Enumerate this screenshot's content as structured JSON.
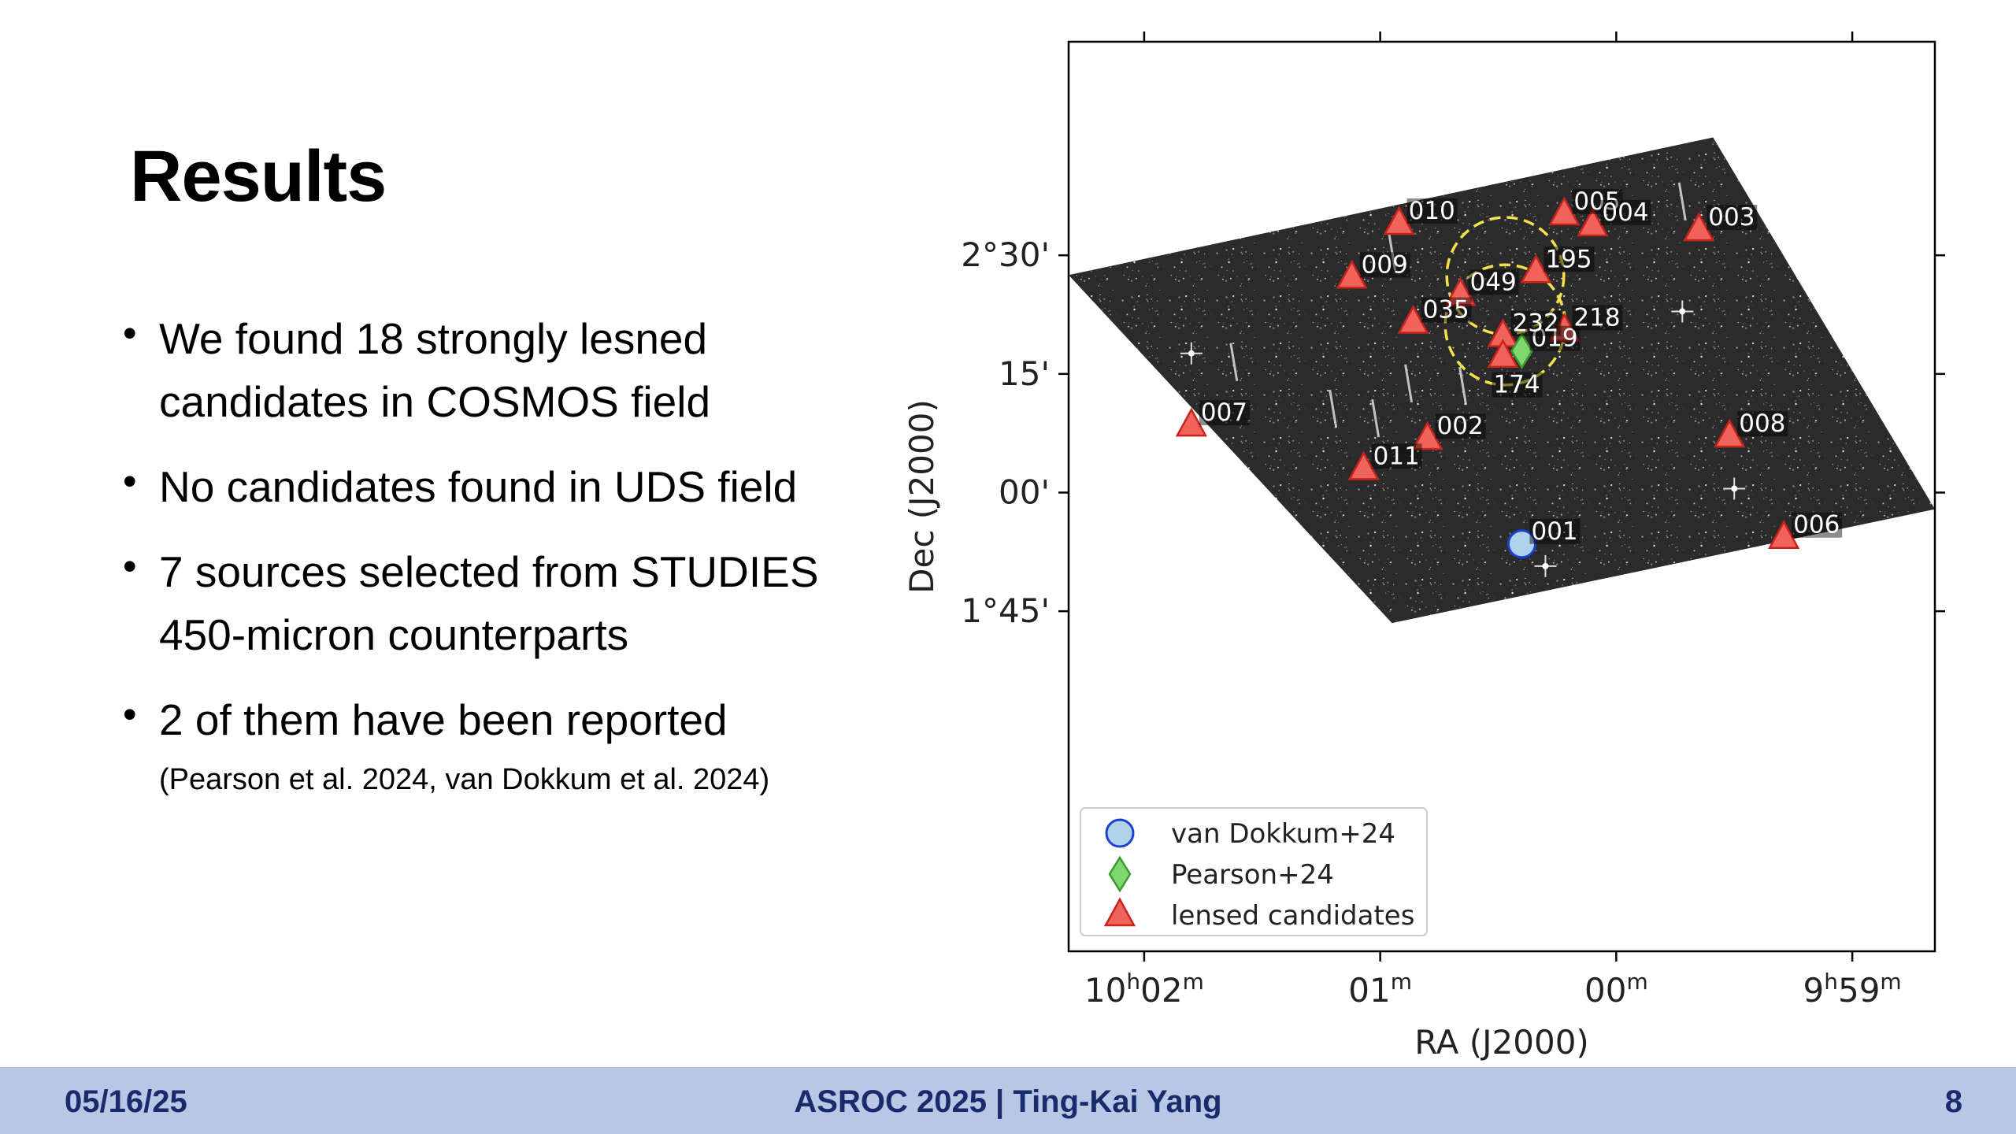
{
  "slide": {
    "title": "Results",
    "bullets": [
      {
        "text": "We found 18 strongly lesned candidates in COSMOS field",
        "sub": ""
      },
      {
        "text": "No candidates found in UDS field",
        "sub": ""
      },
      {
        "text": "7 sources selected from STUDIES 450-micron counterparts",
        "sub": ""
      },
      {
        "text": "2 of them have been reported",
        "sub": "(Pearson et al. 2024, van Dokkum et al. 2024)"
      }
    ],
    "bullet_glyph": "•"
  },
  "footer": {
    "date": "05/16/25",
    "center": "ASROC 2025 | Ting-Kai Yang",
    "page": "8",
    "background": "#b7c7e6",
    "text_color": "#1a2b6b"
  },
  "chart_data": {
    "type": "scatter",
    "xlabel": "RA (J2000)",
    "ylabel": "Dec (J2000)",
    "x_unit": "minutes of RA (relative to 10h00m)",
    "y_unit": "arcmin of Dec",
    "xlim": [
      2.32,
      -1.35
    ],
    "ylim": [
      -58,
      57
    ],
    "x_ticks": [
      {
        "value": 2,
        "label_main": "10",
        "label_sup1": "h",
        "label_mid": "02",
        "label_sup2": "m"
      },
      {
        "value": 1,
        "label_main": "01",
        "label_sup1": "m",
        "label_mid": "",
        "label_sup2": ""
      },
      {
        "value": 0,
        "label_main": "00",
        "label_sup1": "m",
        "label_mid": "",
        "label_sup2": ""
      },
      {
        "value": -1,
        "label_main": "9",
        "label_sup1": "h",
        "label_mid": "59",
        "label_sup2": "m"
      }
    ],
    "y_ticks": [
      {
        "value": 30,
        "label": "2°30'"
      },
      {
        "value": 15,
        "label": "15'"
      },
      {
        "value": 0,
        "label": "00'"
      },
      {
        "value": -15,
        "label": "1°45'"
      }
    ],
    "field": {
      "corners": [
        [
          2.32,
          27.5
        ],
        [
          -0.41,
          44.9
        ],
        [
          -1.35,
          -2.1
        ],
        [
          0.95,
          -16.5
        ]
      ],
      "color": "#2b2b2b"
    },
    "circles": [
      {
        "ra": 0.47,
        "dec": 27.4,
        "radius_arcmin": 7.4
      },
      {
        "ra": 0.47,
        "dec": 21.2,
        "radius_arcmin": 7.6
      }
    ],
    "circle_color": "#f2e34a",
    "series": [
      {
        "name": "van Dokkum+24",
        "marker": "circle",
        "face": "#aed3ea",
        "edge": "#1f3fd0",
        "points": [
          {
            "id": "001",
            "ra": 0.4,
            "dec": -6.5
          }
        ]
      },
      {
        "name": "Pearson+24",
        "marker": "diamond",
        "face": "#7fd86f",
        "edge": "#3a9a2e",
        "points": [
          {
            "id": "019",
            "ra": 0.4,
            "dec": 17.9
          }
        ]
      },
      {
        "name": "lensed candidates",
        "marker": "triangle",
        "face": "#f0635a",
        "edge": "#c8231c",
        "points": [
          {
            "id": "005",
            "ra": 0.22,
            "dec": 35.2
          },
          {
            "id": "004",
            "ra": 0.1,
            "dec": 33.8
          },
          {
            "id": "010",
            "ra": 0.92,
            "dec": 34.0
          },
          {
            "id": "003",
            "ra": -0.35,
            "dec": 33.2
          },
          {
            "id": "195",
            "ra": 0.34,
            "dec": 27.9
          },
          {
            "id": "009",
            "ra": 1.12,
            "dec": 27.2
          },
          {
            "id": "049",
            "ra": 0.66,
            "dec": 25.0
          },
          {
            "id": "035",
            "ra": 0.86,
            "dec": 21.5
          },
          {
            "id": "232",
            "ra": 0.48,
            "dec": 19.8
          },
          {
            "id": "218",
            "ra": 0.22,
            "dec": 20.5
          },
          {
            "id": "174",
            "ra": 0.48,
            "dec": 17.2
          },
          {
            "id": "007",
            "ra": 1.8,
            "dec": 8.5
          },
          {
            "id": "002",
            "ra": 0.8,
            "dec": 6.8
          },
          {
            "id": "011",
            "ra": 1.07,
            "dec": 3.0
          },
          {
            "id": "008",
            "ra": -0.48,
            "dec": 7.1
          },
          {
            "id": "006",
            "ra": -0.71,
            "dec": -5.7
          }
        ]
      }
    ],
    "legend_position": "lower-left",
    "grid": false
  }
}
